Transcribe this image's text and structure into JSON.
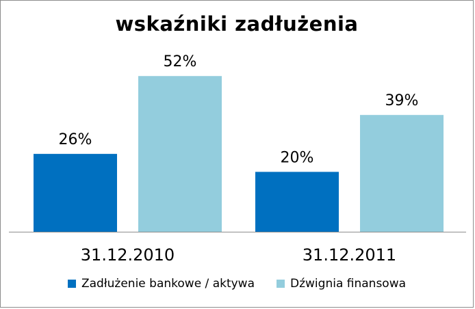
{
  "chart_data": {
    "type": "bar",
    "title": "wskaźniki zadłużenia",
    "categories": [
      "31.12.2010",
      "31.12.2011"
    ],
    "series": [
      {
        "name": "Zadłużenie bankowe / aktywa",
        "color": "#0070c0",
        "values": [
          26,
          20
        ],
        "labels": [
          "26%",
          "20%"
        ]
      },
      {
        "name": "Dźwignia finansowa",
        "color": "#93cddd",
        "values": [
          52,
          39
        ],
        "labels": [
          "52%",
          "39%"
        ]
      }
    ],
    "unit": "%",
    "ylim": [
      0,
      60
    ],
    "grid": false,
    "legend_position": "bottom",
    "xlabel": "",
    "ylabel": ""
  }
}
